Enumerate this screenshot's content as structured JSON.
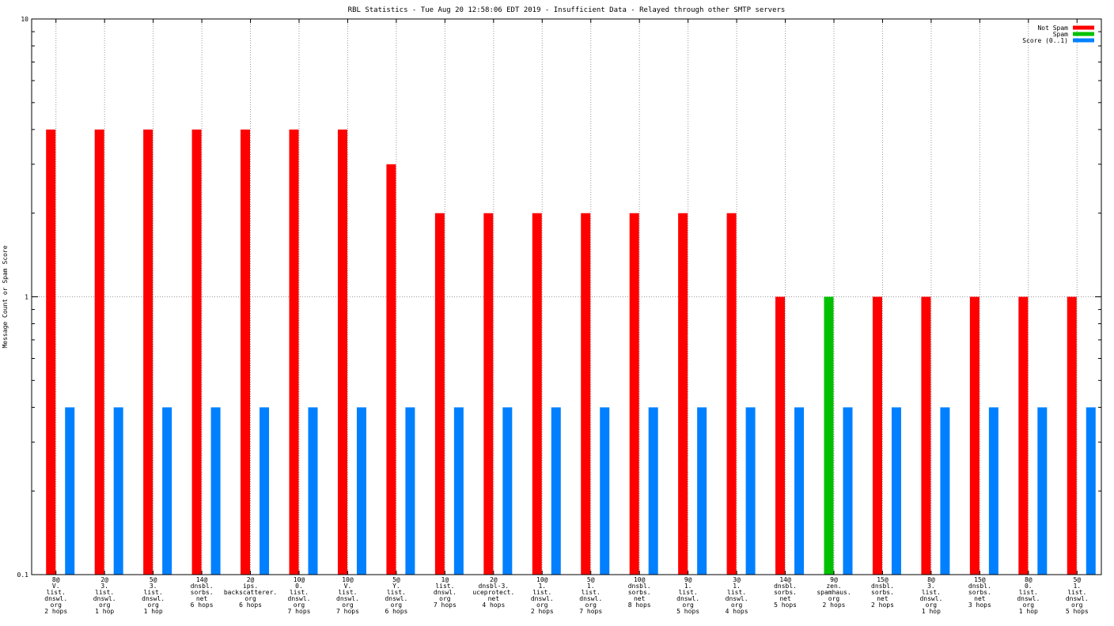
{
  "chart_data": {
    "type": "bar",
    "title": "RBL Statistics - Tue Aug 20 12:58:06 EDT 2019 - Insufficient Data - Relayed through other SMTP servers",
    "xlabel": "",
    "ylabel": "Message Count or Spam Score",
    "y_scale": "log",
    "ylim": [
      0.1,
      10
    ],
    "y_ticks": [
      "0.1",
      "1",
      "10"
    ],
    "grid": true,
    "legend_position": "top-right",
    "categories": [
      [
        "8@",
        "V.",
        "list.",
        "dnswl.",
        "org",
        "2 hops"
      ],
      [
        "2@",
        "3.",
        "list.",
        "dnswl.",
        "org",
        "1 hop"
      ],
      [
        "5@",
        "3.",
        "list.",
        "dnswl.",
        "org",
        "1 hop"
      ],
      [
        "14@",
        "dnsbl.",
        "sorbs.",
        "net",
        "6 hops"
      ],
      [
        "2@",
        "ips.",
        "backscatterer.",
        "org",
        "6 hops"
      ],
      [
        "10@",
        "0.",
        "list.",
        "dnswl.",
        "org",
        "7 hops"
      ],
      [
        "10@",
        "V.",
        "list.",
        "dnswl.",
        "org",
        "7 hops"
      ],
      [
        "5@",
        "Y.",
        "list.",
        "dnswl.",
        "org",
        "6 hops"
      ],
      [
        "1@",
        "list.",
        "dnswl.",
        "org",
        "7 hops"
      ],
      [
        "2@",
        "dnsbl-3.",
        "uceprotect.",
        "net",
        "4 hops"
      ],
      [
        "10@",
        "1.",
        "list.",
        "dnswl.",
        "org",
        "2 hops"
      ],
      [
        "5@",
        "1.",
        "list.",
        "dnswl.",
        "org",
        "7 hops"
      ],
      [
        "10@",
        "dnsbl.",
        "sorbs.",
        "net",
        "8 hops"
      ],
      [
        "9@",
        "1.",
        "list.",
        "dnswl.",
        "org",
        "5 hops"
      ],
      [
        "3@",
        "1.",
        "list.",
        "dnswl.",
        "org",
        "4 hops"
      ],
      [
        "14@",
        "dnsbl.",
        "sorbs.",
        "net",
        "5 hops"
      ],
      [
        "9@",
        "zen.",
        "spamhaus.",
        "org",
        "2 hops"
      ],
      [
        "15@",
        "dnsbl.",
        "sorbs.",
        "net",
        "2 hops"
      ],
      [
        "8@",
        "3.",
        "list.",
        "dnswl.",
        "org",
        "1 hop"
      ],
      [
        "15@",
        "dnsbl.",
        "sorbs.",
        "net",
        "3 hops"
      ],
      [
        "8@",
        "0.",
        "list.",
        "dnswl.",
        "org",
        "1 hop"
      ],
      [
        "5@",
        "1.",
        "list.",
        "dnswl.",
        "org",
        "5 hops"
      ]
    ],
    "series": [
      {
        "name": "Not Spam",
        "color": "#ff0000",
        "values": [
          4,
          4,
          4,
          4,
          4,
          4,
          4,
          3,
          2,
          2,
          2,
          2,
          2,
          2,
          2,
          1,
          null,
          1,
          1,
          1,
          1,
          1
        ]
      },
      {
        "name": "Spam",
        "color": "#00c000",
        "values": [
          null,
          null,
          null,
          null,
          null,
          null,
          null,
          null,
          null,
          null,
          null,
          null,
          null,
          null,
          null,
          null,
          1,
          null,
          null,
          null,
          null,
          null
        ]
      },
      {
        "name": "Score (0..1)",
        "color": "#0080ff",
        "values": [
          0.4,
          0.4,
          0.4,
          0.4,
          0.4,
          0.4,
          0.4,
          0.4,
          0.4,
          0.4,
          0.4,
          0.4,
          0.4,
          0.4,
          0.4,
          0.4,
          0.4,
          0.4,
          0.4,
          0.4,
          0.4,
          0.4
        ]
      }
    ]
  }
}
